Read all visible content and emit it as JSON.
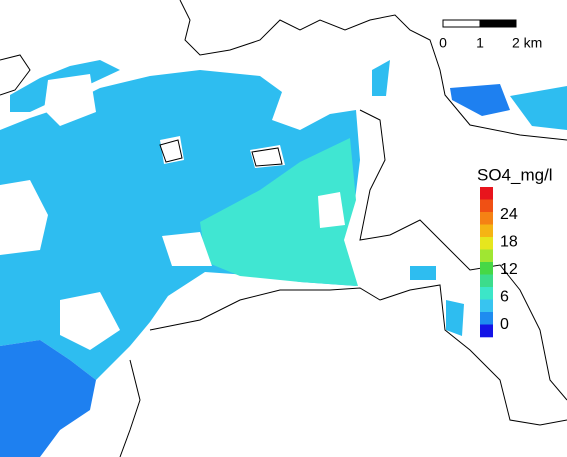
{
  "scale_bar": {
    "labels": [
      "0",
      "1",
      "2 km"
    ]
  },
  "legend": {
    "title": "SO4_mg/l",
    "labels": [
      24,
      18,
      12,
      6,
      0
    ],
    "colors": [
      "#e8141c",
      "#f05014",
      "#f58214",
      "#f5b414",
      "#e6e61e",
      "#a0e632",
      "#46d846",
      "#3cdc8c",
      "#3ce6c8",
      "#38c4f0",
      "#1e8cf0",
      "#1414e6"
    ]
  }
}
